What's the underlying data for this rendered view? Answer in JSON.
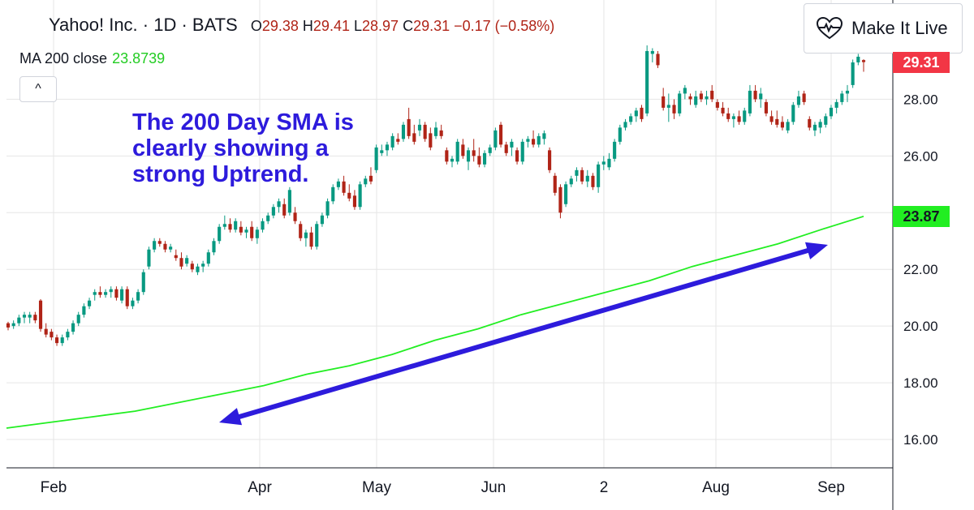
{
  "header": {
    "title": "Yahoo! Inc. · 1D · BATS",
    "ohlc": {
      "o_label": "O",
      "o": "29.38",
      "h_label": "H",
      "h": "29.41",
      "l_label": "L",
      "l": "28.97",
      "c_label": "C",
      "c": "29.31",
      "change": "−0.17 (−0.58%)"
    }
  },
  "ma_legend": {
    "label": "MA 200 close",
    "value": "23.8739"
  },
  "collapse_glyph": "^",
  "make_it_live": {
    "label": "Make It Live",
    "icon": "heart-pulse-icon"
  },
  "annotation": {
    "text": "The 200 Day SMA is clearly showing a strong Uptrend."
  },
  "price_tags": {
    "last": {
      "text": "29.31",
      "value": 29.31,
      "color": "#f23645"
    },
    "ma": {
      "text": "23.87",
      "value": 23.87,
      "color": "#22ee22"
    }
  },
  "colors": {
    "up": "#089981",
    "down": "#b02417",
    "ma": "#22ee22",
    "arrow": "#2d1bdc",
    "grid": "#e6e6e6"
  },
  "chart_data": {
    "type": "candlestick",
    "title": "Yahoo! Inc. · 1D · BATS",
    "ylim": [
      15.0,
      31.5
    ],
    "y_ticks": [
      "16.00",
      "18.00",
      "20.00",
      "22.00",
      "24.00",
      "26.00",
      "28.00"
    ],
    "x_ticks": [
      "Feb",
      "Apr",
      "May",
      "Jun",
      "2",
      "Aug",
      "Sep"
    ],
    "grid": true,
    "candles": [
      [
        20.1,
        20.15,
        19.85,
        19.95
      ],
      [
        20.0,
        20.2,
        19.9,
        20.1
      ],
      [
        20.1,
        20.4,
        20.0,
        20.3
      ],
      [
        20.3,
        20.5,
        20.1,
        20.4
      ],
      [
        20.3,
        20.5,
        20.1,
        20.4
      ],
      [
        20.4,
        20.5,
        20.1,
        20.2
      ],
      [
        20.9,
        20.95,
        19.8,
        19.9
      ],
      [
        19.9,
        20.1,
        19.6,
        19.7
      ],
      [
        19.8,
        19.9,
        19.5,
        19.6
      ],
      [
        19.6,
        19.7,
        19.3,
        19.4
      ],
      [
        19.4,
        19.7,
        19.3,
        19.6
      ],
      [
        19.6,
        19.9,
        19.5,
        19.8
      ],
      [
        19.8,
        20.2,
        19.7,
        20.1
      ],
      [
        20.1,
        20.5,
        20.0,
        20.4
      ],
      [
        20.4,
        20.8,
        20.3,
        20.7
      ],
      [
        20.7,
        21.0,
        20.6,
        20.9
      ],
      [
        21.1,
        21.3,
        20.9,
        21.2
      ],
      [
        21.2,
        21.4,
        21.0,
        21.1
      ],
      [
        21.1,
        21.3,
        21.0,
        21.2
      ],
      [
        21.2,
        21.4,
        21.0,
        21.3
      ],
      [
        21.3,
        21.4,
        20.9,
        21.0
      ],
      [
        20.9,
        21.4,
        20.8,
        21.3
      ],
      [
        21.3,
        21.4,
        20.6,
        20.7
      ],
      [
        20.7,
        21.0,
        20.6,
        20.9
      ],
      [
        20.9,
        21.3,
        20.8,
        21.2
      ],
      [
        21.2,
        22.0,
        21.1,
        21.9
      ],
      [
        22.1,
        22.8,
        22.0,
        22.7
      ],
      [
        22.7,
        23.1,
        22.6,
        23.0
      ],
      [
        23.0,
        23.1,
        22.8,
        22.9
      ],
      [
        22.9,
        23.0,
        22.6,
        22.7
      ],
      [
        22.7,
        22.9,
        22.6,
        22.8
      ],
      [
        22.5,
        22.7,
        22.3,
        22.4
      ],
      [
        22.4,
        22.6,
        22.0,
        22.1
      ],
      [
        22.2,
        22.5,
        22.1,
        22.4
      ],
      [
        22.2,
        22.3,
        21.9,
        22.0
      ],
      [
        21.9,
        22.2,
        21.8,
        22.1
      ],
      [
        22.1,
        22.3,
        21.9,
        22.2
      ],
      [
        22.2,
        22.7,
        22.1,
        22.6
      ],
      [
        22.6,
        23.1,
        22.5,
        23.0
      ],
      [
        23.0,
        23.6,
        22.9,
        23.5
      ],
      [
        23.5,
        23.9,
        23.4,
        23.6
      ],
      [
        23.6,
        23.8,
        23.3,
        23.4
      ],
      [
        23.4,
        23.8,
        23.3,
        23.7
      ],
      [
        23.5,
        23.7,
        23.2,
        23.3
      ],
      [
        23.3,
        23.5,
        23.1,
        23.4
      ],
      [
        23.5,
        23.7,
        23.0,
        23.1
      ],
      [
        23.1,
        23.5,
        22.9,
        23.4
      ],
      [
        23.4,
        23.8,
        23.3,
        23.7
      ],
      [
        23.7,
        24.0,
        23.6,
        23.9
      ],
      [
        23.9,
        24.3,
        23.8,
        24.2
      ],
      [
        24.2,
        24.5,
        24.0,
        24.4
      ],
      [
        24.3,
        24.5,
        23.8,
        23.9
      ],
      [
        24.0,
        24.9,
        23.9,
        24.8
      ],
      [
        24.0,
        24.2,
        23.6,
        23.7
      ],
      [
        23.6,
        23.7,
        23.0,
        23.1
      ],
      [
        23.1,
        23.4,
        22.8,
        23.3
      ],
      [
        23.3,
        23.5,
        22.7,
        22.8
      ],
      [
        22.8,
        23.7,
        22.7,
        23.6
      ],
      [
        23.6,
        24.0,
        23.5,
        23.9
      ],
      [
        23.9,
        24.5,
        23.8,
        24.4
      ],
      [
        24.4,
        25.0,
        24.3,
        24.9
      ],
      [
        24.9,
        25.2,
        24.8,
        25.1
      ],
      [
        25.1,
        25.3,
        24.6,
        24.7
      ],
      [
        24.7,
        25.0,
        24.4,
        24.5
      ],
      [
        24.6,
        24.8,
        24.1,
        24.2
      ],
      [
        24.2,
        25.1,
        24.1,
        25.0
      ],
      [
        25.0,
        25.3,
        24.9,
        25.2
      ],
      [
        25.3,
        25.6,
        25.0,
        25.1
      ],
      [
        25.5,
        26.4,
        25.4,
        26.3
      ],
      [
        26.1,
        26.4,
        26.0,
        26.2
      ],
      [
        26.2,
        26.5,
        26.0,
        26.4
      ],
      [
        26.3,
        26.8,
        26.2,
        26.7
      ],
      [
        26.6,
        26.8,
        26.4,
        26.5
      ],
      [
        26.6,
        27.2,
        26.5,
        27.1
      ],
      [
        27.3,
        27.7,
        26.6,
        26.7
      ],
      [
        26.8,
        27.1,
        26.4,
        26.5
      ],
      [
        26.9,
        27.3,
        26.7,
        27.1
      ],
      [
        27.1,
        27.2,
        26.5,
        26.6
      ],
      [
        26.8,
        27.0,
        26.2,
        26.3
      ],
      [
        26.7,
        27.2,
        26.6,
        27.0
      ],
      [
        26.9,
        27.1,
        26.6,
        26.7
      ],
      [
        26.2,
        26.3,
        25.7,
        25.8
      ],
      [
        25.8,
        26.0,
        25.6,
        25.9
      ],
      [
        25.8,
        26.6,
        25.7,
        26.5
      ],
      [
        26.4,
        26.6,
        25.9,
        26.0
      ],
      [
        25.8,
        26.3,
        25.5,
        26.2
      ],
      [
        26.2,
        26.6,
        25.8,
        26.0
      ],
      [
        26.0,
        26.3,
        25.6,
        25.7
      ],
      [
        25.7,
        26.2,
        25.6,
        26.1
      ],
      [
        26.1,
        26.4,
        26.0,
        26.3
      ],
      [
        26.3,
        27.0,
        26.2,
        26.9
      ],
      [
        27.1,
        27.2,
        26.3,
        26.4
      ],
      [
        26.4,
        26.5,
        26.0,
        26.1
      ],
      [
        26.3,
        26.6,
        26.0,
        26.5
      ],
      [
        26.2,
        26.3,
        25.7,
        25.8
      ],
      [
        25.8,
        26.6,
        25.7,
        26.5
      ],
      [
        26.5,
        26.7,
        26.3,
        26.6
      ],
      [
        26.6,
        26.9,
        26.3,
        26.4
      ],
      [
        26.4,
        26.8,
        26.3,
        26.7
      ],
      [
        26.6,
        26.9,
        26.4,
        26.8
      ],
      [
        26.2,
        26.3,
        25.4,
        25.5
      ],
      [
        25.3,
        25.4,
        24.6,
        24.7
      ],
      [
        24.9,
        25.0,
        23.8,
        24.0
      ],
      [
        24.3,
        25.1,
        24.2,
        25.0
      ],
      [
        25.0,
        25.3,
        24.9,
        25.2
      ],
      [
        25.3,
        25.6,
        25.1,
        25.5
      ],
      [
        25.5,
        25.6,
        25.0,
        25.1
      ],
      [
        25.1,
        25.5,
        24.9,
        25.3
      ],
      [
        25.3,
        25.4,
        24.8,
        24.9
      ],
      [
        24.9,
        25.8,
        24.7,
        25.7
      ],
      [
        25.7,
        26.0,
        25.5,
        25.8
      ],
      [
        25.6,
        26.1,
        25.5,
        25.9
      ],
      [
        25.9,
        26.6,
        25.8,
        26.5
      ],
      [
        26.5,
        27.1,
        26.4,
        27.0
      ],
      [
        27.0,
        27.3,
        26.9,
        27.2
      ],
      [
        27.2,
        27.5,
        27.1,
        27.4
      ],
      [
        27.4,
        27.7,
        27.2,
        27.6
      ],
      [
        27.7,
        27.8,
        27.2,
        27.3
      ],
      [
        27.5,
        29.9,
        27.4,
        29.7
      ],
      [
        29.6,
        29.8,
        29.3,
        29.7
      ],
      [
        29.6,
        29.7,
        29.1,
        29.2
      ],
      [
        28.1,
        28.4,
        27.6,
        27.7
      ],
      [
        27.7,
        28.2,
        27.2,
        27.8
      ],
      [
        27.8,
        28.0,
        27.3,
        27.5
      ],
      [
        27.5,
        28.3,
        27.4,
        28.2
      ],
      [
        28.2,
        28.5,
        28.0,
        28.4
      ],
      [
        28.1,
        28.2,
        27.8,
        28.0
      ],
      [
        27.8,
        28.3,
        27.7,
        28.1
      ],
      [
        28.2,
        28.3,
        27.9,
        28.0
      ],
      [
        28.0,
        28.3,
        27.8,
        28.1
      ],
      [
        28.3,
        28.5,
        27.9,
        28.0
      ],
      [
        27.9,
        28.0,
        27.6,
        27.7
      ],
      [
        27.7,
        27.9,
        27.4,
        27.5
      ],
      [
        27.5,
        27.7,
        27.2,
        27.3
      ],
      [
        27.3,
        27.5,
        27.0,
        27.4
      ],
      [
        27.4,
        27.6,
        27.1,
        27.2
      ],
      [
        27.2,
        27.7,
        27.1,
        27.6
      ],
      [
        27.5,
        28.5,
        27.4,
        28.3
      ],
      [
        28.3,
        28.5,
        27.9,
        28.0
      ],
      [
        28.0,
        28.4,
        27.7,
        28.2
      ],
      [
        27.9,
        28.0,
        27.4,
        27.5
      ],
      [
        27.4,
        27.6,
        27.1,
        27.2
      ],
      [
        27.3,
        27.6,
        27.0,
        27.1
      ],
      [
        27.2,
        27.4,
        26.9,
        27.0
      ],
      [
        26.9,
        27.3,
        26.8,
        27.2
      ],
      [
        27.2,
        27.9,
        27.1,
        27.8
      ],
      [
        27.8,
        28.3,
        27.7,
        28.1
      ],
      [
        28.2,
        28.3,
        27.8,
        27.9
      ],
      [
        27.3,
        27.4,
        26.9,
        27.0
      ],
      [
        26.9,
        27.2,
        26.7,
        27.1
      ],
      [
        27.0,
        27.3,
        26.8,
        27.2
      ],
      [
        27.1,
        27.5,
        27.0,
        27.4
      ],
      [
        27.4,
        27.8,
        27.3,
        27.7
      ],
      [
        27.7,
        28.0,
        27.5,
        27.9
      ],
      [
        27.9,
        28.3,
        27.8,
        28.2
      ],
      [
        28.2,
        28.5,
        27.9,
        28.3
      ],
      [
        28.5,
        29.4,
        28.4,
        29.3
      ],
      [
        29.3,
        29.6,
        29.2,
        29.5
      ],
      [
        29.38,
        29.41,
        28.97,
        29.31
      ]
    ],
    "ma200": {
      "name": "MA 200 close",
      "x_fraction": [
        0,
        0.05,
        0.1,
        0.15,
        0.2,
        0.25,
        0.3,
        0.35,
        0.4,
        0.45,
        0.5,
        0.55,
        0.6,
        0.65,
        0.7,
        0.75,
        0.8,
        0.85,
        0.9,
        0.95,
        1.0
      ],
      "values": [
        16.4,
        16.6,
        16.8,
        17.0,
        17.3,
        17.6,
        17.9,
        18.3,
        18.6,
        19.0,
        19.5,
        19.9,
        20.4,
        20.8,
        21.2,
        21.6,
        22.1,
        22.5,
        22.9,
        23.4,
        23.87
      ]
    }
  }
}
